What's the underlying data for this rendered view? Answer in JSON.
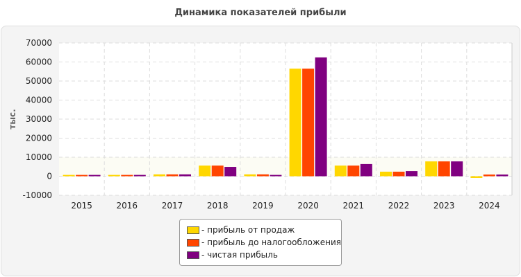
{
  "chart_data": {
    "type": "bar",
    "title": "Динамика показателей прибыли",
    "ylabel": "тыс.",
    "xlabel": "",
    "ylim": [
      -10000,
      70000
    ],
    "yticks": [
      "-10000",
      "0",
      "10000",
      "20000",
      "30000",
      "40000",
      "50000",
      "60000",
      "70000"
    ],
    "grid": true,
    "legend_position": "bottom",
    "categories": [
      "2015",
      "2016",
      "2017",
      "2018",
      "2019",
      "2020",
      "2021",
      "2022",
      "2023",
      "2024"
    ],
    "series": [
      {
        "name": "- прибыль от продаж",
        "color": "#FFD700",
        "values": [
          700,
          700,
          1000,
          5600,
          1000,
          56500,
          5600,
          2400,
          7800,
          -900
        ]
      },
      {
        "name": "- прибыль до налогообложения",
        "color": "#FF4500",
        "values": [
          700,
          700,
          1000,
          5600,
          1000,
          56500,
          5600,
          2400,
          7800,
          900
        ]
      },
      {
        "name": "- чистая прибыль",
        "color": "#800080",
        "values": [
          700,
          700,
          1000,
          4900,
          700,
          62400,
          6400,
          2700,
          7800,
          900
        ]
      }
    ]
  }
}
